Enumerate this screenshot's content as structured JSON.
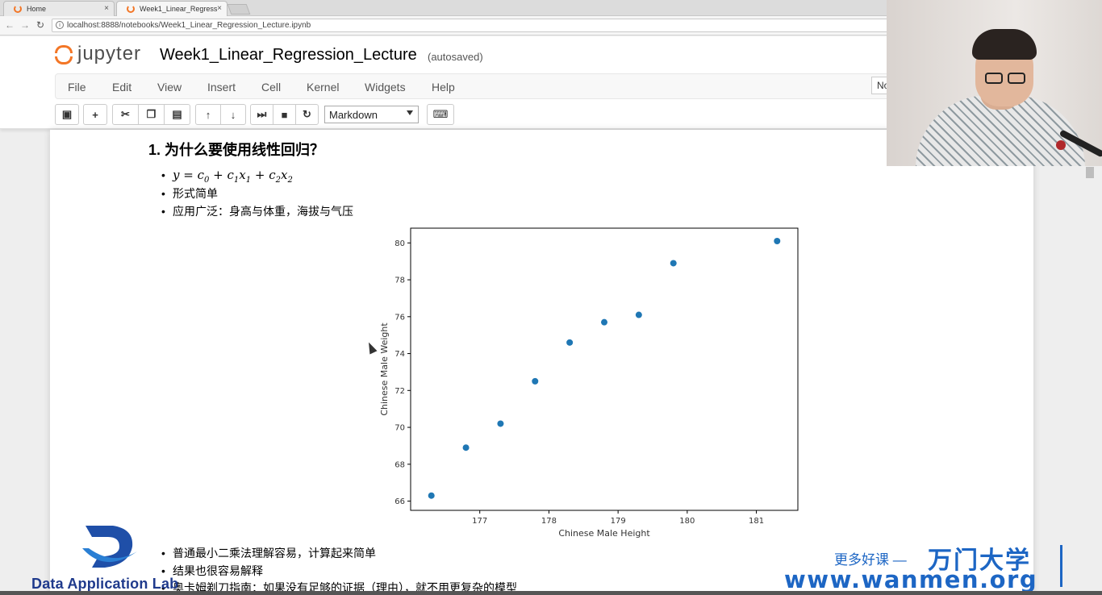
{
  "browser": {
    "tabs": [
      {
        "label": "Home",
        "close": "×"
      },
      {
        "label": "Week1_Linear_Regress",
        "close": "×"
      }
    ],
    "url": "localhost:8888/notebooks/Week1_Linear_Regression_Lecture.ipynb"
  },
  "jupyter": {
    "logo_text": "jupyter",
    "notebook_title": "Week1_Linear_Regression_Lecture",
    "autosave": "(autosaved)",
    "menu": [
      "File",
      "Edit",
      "View",
      "Insert",
      "Cell",
      "Kernel",
      "Widgets",
      "Help"
    ],
    "kernel_indicator": "No",
    "cell_type": "Markdown"
  },
  "content": {
    "heading": "1. 为什么要使用线性回归？",
    "bullets_top": [
      "形式简单",
      "应用广泛：身高与体重，海拔与气压"
    ],
    "bullets_bottom": [
      "普通最小二乘法理解容易，计算起来简单",
      "结果也很容易解释",
      "奥卡姆剃刀指南：如果没有足够的证据（理由），就不用更复杂的模型"
    ]
  },
  "chart_data": {
    "type": "scatter",
    "xlabel": "Chinese Male Height",
    "ylabel": "Chinese Male Weight",
    "x": [
      176.3,
      176.8,
      177.3,
      177.8,
      178.3,
      178.8,
      179.3,
      179.8,
      181.3
    ],
    "y": [
      66.3,
      68.9,
      70.2,
      72.5,
      74.6,
      75.7,
      76.1,
      78.9,
      80.1
    ],
    "xlim": [
      176.0,
      181.6
    ],
    "ylim": [
      65.5,
      80.8
    ],
    "xticks": [
      177,
      178,
      179,
      180,
      181
    ],
    "yticks": [
      66,
      68,
      70,
      72,
      74,
      76,
      78,
      80
    ],
    "marker_color": "#1f77b4",
    "grid": false
  },
  "overlay": {
    "left_logo_text": "Data Application Lab",
    "watermark_cn": "更多好课 —",
    "watermark_brand": "万门大学",
    "watermark_url": "www.wanmen.org"
  }
}
